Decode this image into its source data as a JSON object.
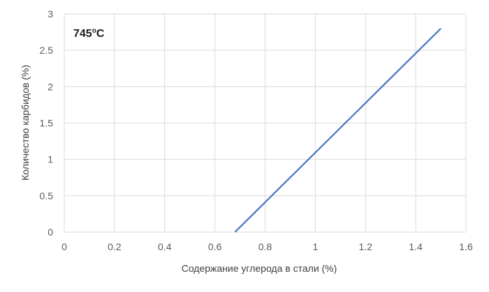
{
  "chart_data": {
    "type": "line",
    "title": "",
    "xlabel": "Содержание углерода в стали (%)",
    "ylabel": "Количество карбидов (%)",
    "xlim": [
      0,
      1.6
    ],
    "ylim": [
      0,
      3
    ],
    "x_ticks": [
      "0",
      "0.2",
      "0.4",
      "0.6",
      "0.8",
      "1",
      "1.2",
      "1.4",
      "1.6"
    ],
    "y_ticks": [
      "0",
      "0.5",
      "1",
      "1.5",
      "2",
      "2.5",
      "3"
    ],
    "grid": true,
    "legend": "none",
    "annotation": {
      "main": "745",
      "sup": "o",
      "suffix": "C"
    },
    "series": [
      {
        "color": "#4472c4",
        "x": [
          0.68,
          1.5
        ],
        "y": [
          0,
          2.8
        ]
      }
    ]
  }
}
